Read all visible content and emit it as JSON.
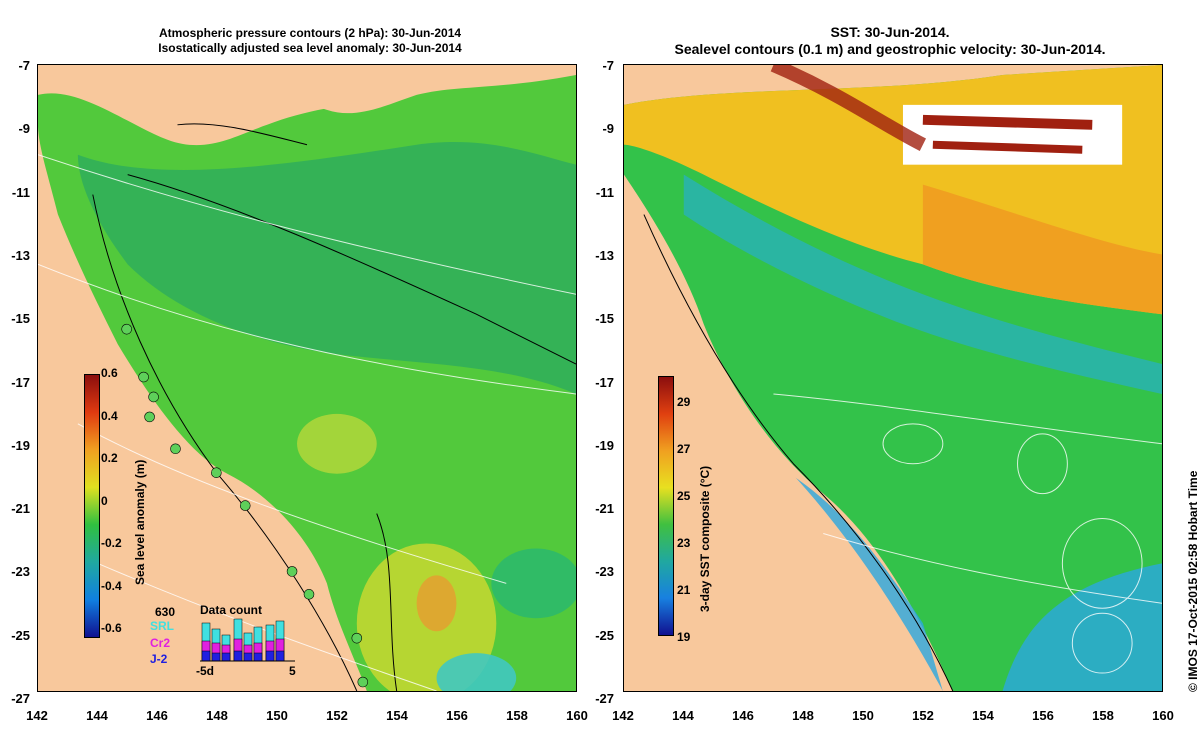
{
  "left_panel": {
    "title_line1": "Atmospheric pressure contours (2 hPa): 30-Jun-2014",
    "title_line2": "Isostatically adjusted sea level anomaly: 30-Jun-2014",
    "colorbar": {
      "label": "Sea level anomaly (m)",
      "ticks": [
        "0.6",
        "0.4",
        "0.2",
        "0",
        "-0.2",
        "-0.4",
        "-0.6"
      ]
    },
    "data_count": {
      "title": "Data count",
      "count_label": "630",
      "missions": [
        "SRL",
        "Cr2",
        "J-2"
      ],
      "mission_colors": [
        "#40e0e0",
        "#e020e0",
        "#2020e0"
      ],
      "axis_left": "-5d",
      "axis_right": "5"
    }
  },
  "right_panel": {
    "title_line1": "SST: 30-Jun-2014.",
    "title_line2": "Sealevel contours (0.1 m) and geostrophic velocity: 30-Jun-2014.",
    "colorbar": {
      "label": "3-day SST composite (°C)",
      "ticks": [
        "29",
        "27",
        "25",
        "23",
        "21",
        "19"
      ]
    }
  },
  "axes": {
    "y_ticks": [
      "-7",
      "-9",
      "-11",
      "-13",
      "-15",
      "-17",
      "-19",
      "-21",
      "-23",
      "-25",
      "-27"
    ],
    "x_ticks": [
      "142",
      "144",
      "146",
      "148",
      "150",
      "152",
      "154",
      "156",
      "158",
      "160"
    ]
  },
  "credit": "© IMOS 17-Oct-2015 02:58 Hobart Time",
  "colors": {
    "land": "#f8c89c",
    "sea_mid": "#33c24a",
    "sst_warm": "#f0a020",
    "sst_cool": "#2aa8e0"
  }
}
